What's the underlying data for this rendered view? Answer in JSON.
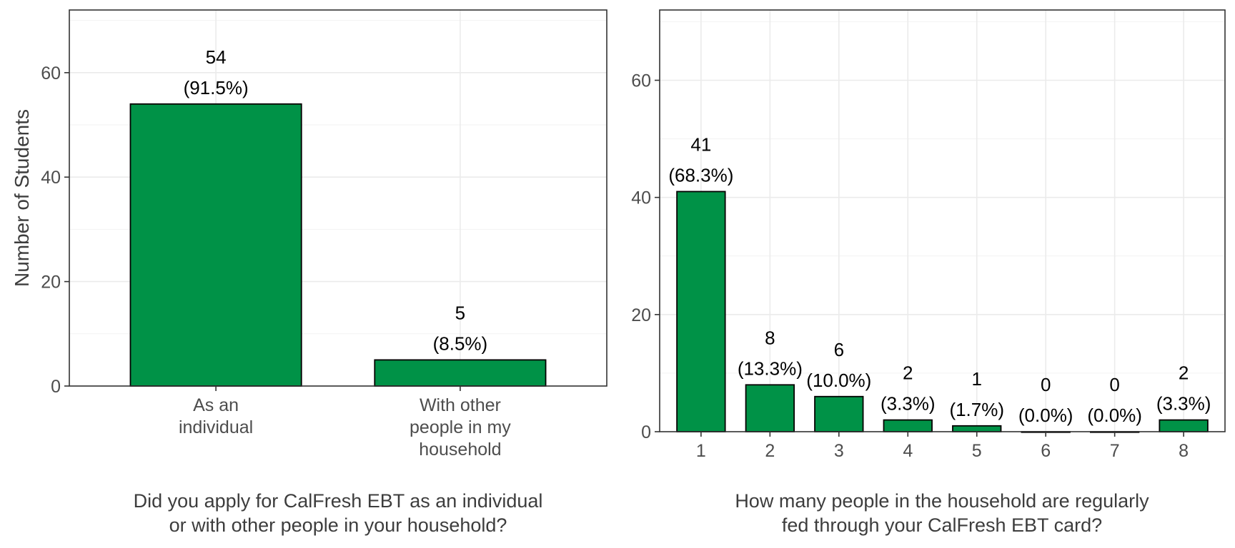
{
  "chart_data": [
    {
      "type": "bar",
      "categories": [
        [
          "As an",
          "individual"
        ],
        [
          "With other",
          "people in my",
          "household"
        ]
      ],
      "values": [
        54,
        5
      ],
      "labels": [
        "54",
        "5"
      ],
      "pct_labels": [
        "(91.5%)",
        "(8.5%)"
      ],
      "title": [
        "Did you apply for CalFresh EBT as an individual",
        "or with other people in your household?"
      ],
      "ylabel": "Number of Students",
      "ylim": [
        0,
        72
      ],
      "yticks": [
        0,
        20,
        40,
        60
      ],
      "bar_color": "#009247",
      "grid": true
    },
    {
      "type": "bar",
      "categories": [
        [
          "1"
        ],
        [
          "2"
        ],
        [
          "3"
        ],
        [
          "4"
        ],
        [
          "5"
        ],
        [
          "6"
        ],
        [
          "7"
        ],
        [
          "8"
        ]
      ],
      "values": [
        41,
        8,
        6,
        2,
        1,
        0,
        0,
        2
      ],
      "labels": [
        "41",
        "8",
        "6",
        "2",
        "1",
        "0",
        "0",
        "2"
      ],
      "pct_labels": [
        "(68.3%)",
        "(13.3%)",
        "(10.0%)",
        "(3.3%)",
        "(1.7%)",
        "(0.0%)",
        "(0.0%)",
        "(3.3%)"
      ],
      "title": [
        "How many people in the household are regularly",
        "fed through your CalFresh EBT card?"
      ],
      "ylabel": "",
      "ylim": [
        0,
        72
      ],
      "yticks": [
        0,
        20,
        40,
        60
      ],
      "bar_color": "#009247",
      "grid": true
    }
  ]
}
